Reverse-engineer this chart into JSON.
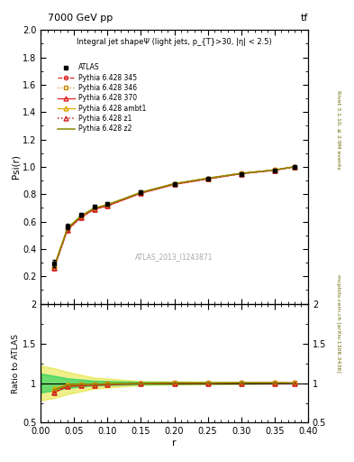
{
  "title_top": "7000 GeV pp",
  "title_top_right": "tf",
  "main_title": "Integral jet shapeΨ (light jets, p_{T}>30, |η| < 2.5)",
  "ylabel_main": "Psi(r)",
  "ylabel_ratio": "Ratio to ATLAS",
  "xlabel": "r",
  "right_label_top": "Rivet 3.1.10, ≥ 2.9M events",
  "right_label_bottom": "mcplots.cern.ch [arXiv:1306.3436]",
  "watermark": "ATLAS_2013_I1243871",
  "ylim_main": [
    0.0,
    2.0
  ],
  "ylim_ratio": [
    0.0,
    2.0
  ],
  "ylim_ratio_display": [
    0.5,
    2.0
  ],
  "xlim": [
    0.0,
    0.4
  ],
  "r_values": [
    0.02,
    0.04,
    0.06,
    0.08,
    0.1,
    0.15,
    0.2,
    0.25,
    0.3,
    0.35,
    0.38
  ],
  "atlas_data": [
    0.295,
    0.565,
    0.65,
    0.71,
    0.73,
    0.815,
    0.875,
    0.915,
    0.95,
    0.975,
    1.0
  ],
  "atlas_err": [
    0.025,
    0.02,
    0.015,
    0.012,
    0.01,
    0.01,
    0.008,
    0.007,
    0.006,
    0.005,
    0.004
  ],
  "py345_data": [
    0.265,
    0.545,
    0.635,
    0.695,
    0.72,
    0.81,
    0.875,
    0.915,
    0.952,
    0.977,
    1.002
  ],
  "py346_data": [
    0.268,
    0.548,
    0.638,
    0.697,
    0.722,
    0.812,
    0.876,
    0.916,
    0.952,
    0.977,
    1.001
  ],
  "py370_data": [
    0.26,
    0.54,
    0.63,
    0.69,
    0.715,
    0.808,
    0.872,
    0.912,
    0.95,
    0.975,
    1.0
  ],
  "pyambt1_data": [
    0.275,
    0.555,
    0.642,
    0.7,
    0.725,
    0.815,
    0.878,
    0.917,
    0.953,
    0.977,
    1.001
  ],
  "pyz1_data": [
    0.26,
    0.54,
    0.63,
    0.69,
    0.715,
    0.808,
    0.872,
    0.912,
    0.95,
    0.975,
    1.0
  ],
  "pyz2_data": [
    0.27,
    0.55,
    0.64,
    0.698,
    0.723,
    0.813,
    0.877,
    0.917,
    0.953,
    0.978,
    1.001
  ],
  "color_345": "#dd2222",
  "color_346": "#cc8800",
  "color_370": "#dd2222",
  "color_ambt1": "#ddaa00",
  "color_z1": "#cc2222",
  "color_z2": "#888800",
  "band_green": "#00cc55",
  "band_yellow": "#dddd00",
  "band_green_alpha": 0.55,
  "band_yellow_alpha": 0.45
}
